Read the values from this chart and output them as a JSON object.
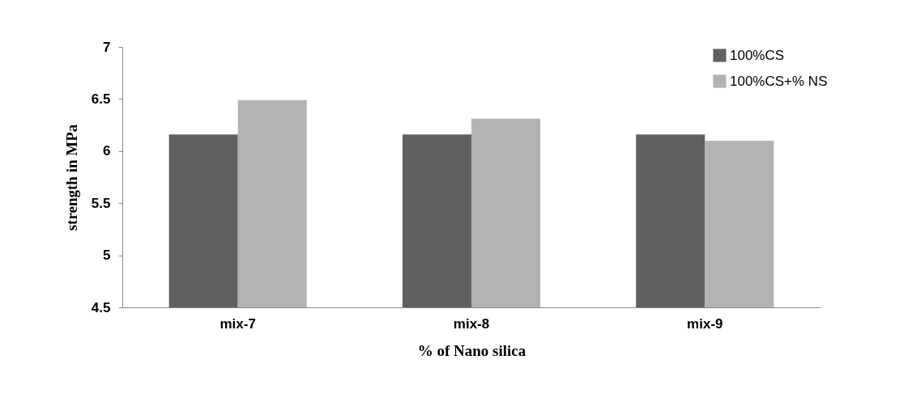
{
  "chart_data": {
    "type": "bar",
    "xlabel": "% of Nano silica",
    "ylabel": "strength in MPa",
    "categories": [
      "mix-7",
      "mix-8",
      "mix-9"
    ],
    "series": [
      {
        "name": "100%CS",
        "color": "#606060",
        "values": [
          6.16,
          6.16,
          6.16
        ]
      },
      {
        "name": "100%CS+% NS",
        "color": "#b3b3b3",
        "values": [
          6.49,
          6.31,
          6.1
        ]
      }
    ],
    "ylim": [
      4.5,
      7
    ],
    "yticks": [
      4.5,
      5,
      5.5,
      6,
      6.5,
      7
    ],
    "grid": false,
    "legend": "top right"
  }
}
